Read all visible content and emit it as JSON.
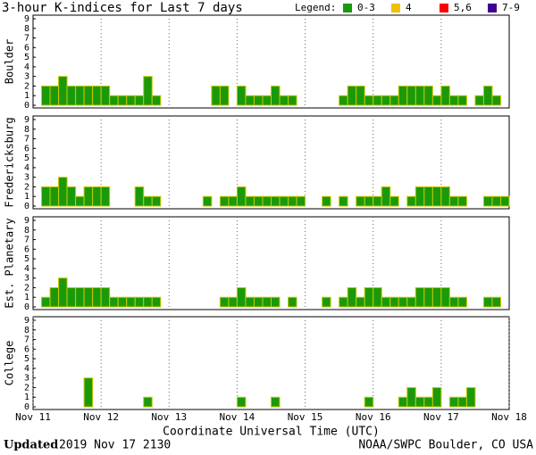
{
  "header": {
    "title": "3-hour K-indices for Last 7 days",
    "legend_title": "Legend:",
    "legend": [
      {
        "label": "0-3",
        "color": "#1a9a0a"
      },
      {
        "label": "4",
        "color": "#f0c000"
      },
      {
        "label": "5,6",
        "color": "#ff0000"
      },
      {
        "label": "7-9",
        "color": "#400090"
      }
    ]
  },
  "chart_data": [
    {
      "type": "bar",
      "ylabel": "Boulder",
      "color": "#1a9a0a",
      "ylim": [
        0,
        9
      ],
      "yticks": [
        0,
        1,
        2,
        3,
        4,
        5,
        6,
        7,
        8,
        9
      ],
      "xlim": [
        0,
        56
      ],
      "xticks": [
        8,
        16,
        24,
        32,
        40,
        48
      ],
      "values": [
        0,
        2,
        2,
        3,
        2,
        2,
        2,
        2,
        2,
        1,
        1,
        1,
        1,
        3,
        1,
        0,
        0,
        0,
        0,
        0,
        0,
        2,
        2,
        0,
        2,
        1,
        1,
        1,
        2,
        1,
        1,
        0,
        0,
        0,
        0,
        0,
        1,
        2,
        2,
        1,
        1,
        1,
        1,
        2,
        2,
        2,
        2,
        1,
        2,
        1,
        1,
        0,
        1,
        2,
        1,
        0
      ]
    },
    {
      "type": "bar",
      "ylabel": "Fredericksburg",
      "color": "#1a9a0a",
      "ylim": [
        0,
        9
      ],
      "yticks": [
        0,
        1,
        2,
        3,
        4,
        5,
        6,
        7,
        8,
        9
      ],
      "xlim": [
        0,
        56
      ],
      "xticks": [
        8,
        16,
        24,
        32,
        40,
        48
      ],
      "values": [
        0,
        2,
        2,
        3,
        2,
        1,
        2,
        2,
        2,
        0,
        0,
        0,
        2,
        1,
        1,
        0,
        0,
        0,
        0,
        0,
        1,
        0,
        1,
        1,
        2,
        1,
        1,
        1,
        1,
        1,
        1,
        1,
        0,
        0,
        1,
        0,
        1,
        0,
        1,
        1,
        1,
        2,
        1,
        0,
        1,
        2,
        2,
        2,
        2,
        1,
        1,
        0,
        0,
        1,
        1,
        1
      ]
    },
    {
      "type": "bar",
      "ylabel": "Est. Planetary",
      "color": "#1a9a0a",
      "ylim": [
        0,
        9
      ],
      "yticks": [
        0,
        1,
        2,
        3,
        4,
        5,
        6,
        7,
        8,
        9
      ],
      "xlim": [
        0,
        56
      ],
      "xticks": [
        8,
        16,
        24,
        32,
        40,
        48
      ],
      "values": [
        0,
        1,
        2,
        3,
        2,
        2,
        2,
        2,
        2,
        1,
        1,
        1,
        1,
        1,
        1,
        0,
        0,
        0,
        0,
        0,
        0,
        0,
        1,
        1,
        2,
        1,
        1,
        1,
        1,
        0,
        1,
        0,
        0,
        0,
        1,
        0,
        1,
        2,
        1,
        2,
        2,
        1,
        1,
        1,
        1,
        2,
        2,
        2,
        2,
        1,
        1,
        0,
        0,
        1,
        1,
        0
      ]
    },
    {
      "type": "bar",
      "ylabel": "College",
      "color": "#1a9a0a",
      "ylim": [
        0,
        9
      ],
      "yticks": [
        0,
        1,
        2,
        3,
        4,
        5,
        6,
        7,
        8,
        9
      ],
      "xlim": [
        0,
        56
      ],
      "xticks": [
        {
          "value": 0,
          "label": "Nov 11"
        },
        {
          "value": 8,
          "label": "Nov 12"
        },
        {
          "value": 16,
          "label": "Nov 13"
        },
        {
          "value": 24,
          "label": "Nov 14"
        },
        {
          "value": 32,
          "label": "Nov 15"
        },
        {
          "value": 40,
          "label": "Nov 16"
        },
        {
          "value": 48,
          "label": "Nov 17"
        },
        {
          "value": 56,
          "label": "Nov 18"
        }
      ],
      "xlabel": "Coordinate Universal Time (UTC)",
      "values": [
        0,
        0,
        0,
        0,
        0,
        0,
        3,
        0,
        0,
        0,
        0,
        0,
        0,
        1,
        0,
        0,
        0,
        0,
        0,
        0,
        0,
        0,
        0,
        0,
        1,
        0,
        0,
        0,
        1,
        0,
        0,
        0,
        0,
        0,
        0,
        0,
        0,
        0,
        0,
        1,
        0,
        0,
        0,
        1,
        2,
        1,
        1,
        2,
        0,
        1,
        1,
        2,
        0,
        0,
        0,
        0
      ]
    }
  ],
  "footer": {
    "updated_label": "Updated",
    "updated": "2019 Nov 17 2130",
    "source": "NOAA/SWPC Boulder, CO USA"
  }
}
